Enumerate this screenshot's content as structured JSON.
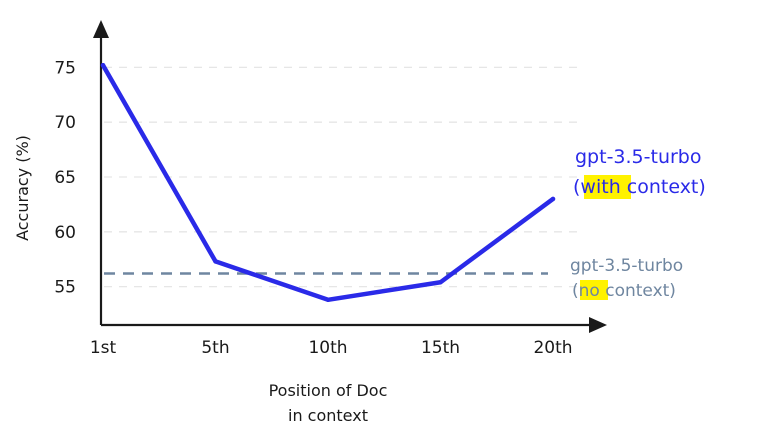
{
  "chart_data": {
    "type": "line",
    "title": "",
    "xlabel_lines": [
      "Position of Doc",
      "in context"
    ],
    "ylabel": "Accuracy (%)",
    "categories": [
      "1st",
      "5th",
      "10th",
      "15th",
      "20th"
    ],
    "y_ticks": [
      55,
      60,
      65,
      70,
      75
    ],
    "ylim": [
      51.5,
      77.5
    ],
    "grid": "horizontal dashed",
    "series": [
      {
        "name": "gpt-3.5-turbo (with context)",
        "values": [
          75.2,
          57.3,
          53.8,
          55.4,
          63.0
        ],
        "color": "#2a2ae8",
        "style": "solid"
      }
    ],
    "reference_lines": [
      {
        "name": "gpt-3.5-turbo (no context)",
        "value": 56.2,
        "color": "#6f86a0",
        "style": "dashed"
      }
    ],
    "annotations": {
      "with_context": {
        "line1": "gpt-3.5-turbo",
        "open": "(",
        "highlight": "with",
        "rest": " context)",
        "color": "#2a2ae8",
        "highlight_color": "#fff200"
      },
      "no_context": {
        "line1": "gpt-3.5-turbo",
        "open": "(",
        "highlight": "no",
        "rest": " context)",
        "color": "#6f86a0",
        "highlight_color": "#fff200"
      }
    }
  }
}
